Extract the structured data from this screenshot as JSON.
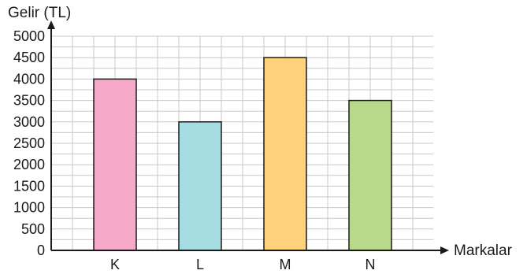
{
  "chart_data": {
    "type": "bar",
    "ylabel": "Gelir (TL)",
    "xlabel": "Markalar",
    "categories": [
      "K",
      "L",
      "M",
      "N"
    ],
    "values": [
      4000,
      3000,
      4500,
      3500
    ],
    "colors": [
      "#f6a9c8",
      "#a6dde3",
      "#fed27a",
      "#b9d98a"
    ],
    "ylim": [
      0,
      5000
    ],
    "yticks": [
      "0",
      "500",
      "1000",
      "1500",
      "2000",
      "2500",
      "3000",
      "3500",
      "4000",
      "4500",
      "5000"
    ],
    "grid": true,
    "legend": "none"
  }
}
